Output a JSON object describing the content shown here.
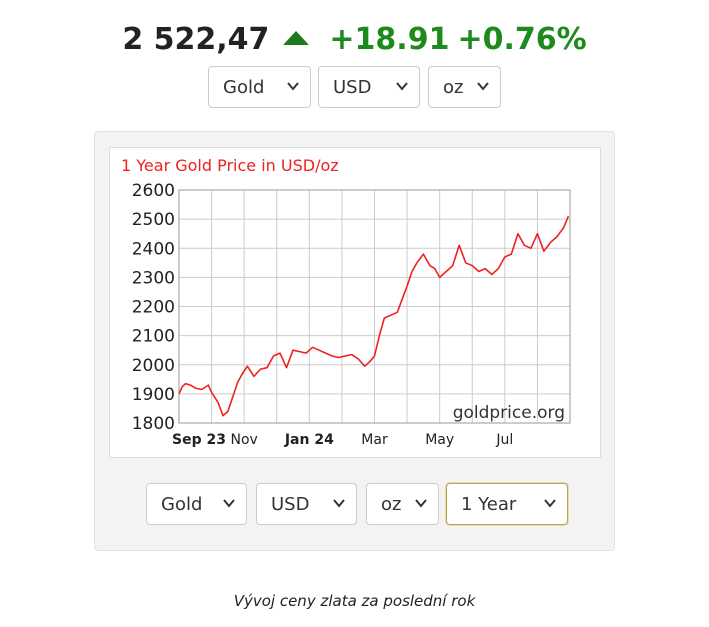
{
  "header": {
    "price": "2 522,47",
    "change": "+18.91",
    "change_pct": "+0.76%",
    "up_color": "#1e8a1e"
  },
  "top_selects": {
    "metal": "Gold",
    "currency": "USD",
    "unit": "oz"
  },
  "bottom_selects": {
    "metal": "Gold",
    "currency": "USD",
    "unit": "oz",
    "period": "1 Year"
  },
  "caption": "Vývoj ceny zlata za poslední rok",
  "chart_data": {
    "type": "line",
    "title": "1 Year Gold Price in USD/oz",
    "watermark": "goldprice.org",
    "ylim": [
      1800,
      2600
    ],
    "yticks": [
      1800,
      1900,
      2000,
      2100,
      2200,
      2300,
      2400,
      2500,
      2600
    ],
    "xlim": [
      0,
      12
    ],
    "xticks": [
      {
        "pos": 0,
        "label": "Sep 23",
        "bold": true
      },
      {
        "pos": 2,
        "label": "Nov",
        "bold": false
      },
      {
        "pos": 4,
        "label": "Jan 24",
        "bold": true
      },
      {
        "pos": 6,
        "label": "Mar",
        "bold": false
      },
      {
        "pos": 8,
        "label": "May",
        "bold": false
      },
      {
        "pos": 10,
        "label": "Jul",
        "bold": false
      }
    ],
    "grid": true,
    "line_color": "#ee2222",
    "series": [
      {
        "x": [
          0,
          0.1,
          0.2,
          0.35,
          0.5,
          0.7,
          0.9,
          1.0,
          1.2,
          1.35,
          1.5,
          1.65,
          1.8,
          1.95,
          2.1,
          2.3,
          2.5,
          2.7,
          2.9,
          3.1,
          3.3,
          3.5,
          3.7,
          3.9,
          4.1,
          4.3,
          4.5,
          4.7,
          4.9,
          5.1,
          5.3,
          5.5,
          5.7,
          5.85,
          6.0,
          6.15,
          6.3,
          6.5,
          6.7,
          6.9,
          7.0,
          7.15,
          7.3,
          7.5,
          7.7,
          7.85,
          8.0,
          8.2,
          8.4,
          8.6,
          8.8,
          9.0,
          9.2,
          9.4,
          9.6,
          9.8,
          10.0,
          10.2,
          10.4,
          10.6,
          10.8,
          11.0,
          11.2,
          11.4,
          11.6,
          11.8,
          11.95
        ],
        "y": [
          1900,
          1925,
          1935,
          1930,
          1920,
          1915,
          1930,
          1905,
          1870,
          1825,
          1840,
          1890,
          1940,
          1970,
          1995,
          1960,
          1985,
          1990,
          2030,
          2040,
          1990,
          2050,
          2045,
          2040,
          2060,
          2050,
          2040,
          2030,
          2025,
          2030,
          2035,
          2020,
          1995,
          2010,
          2030,
          2100,
          2160,
          2170,
          2180,
          2240,
          2270,
          2320,
          2350,
          2380,
          2340,
          2330,
          2300,
          2320,
          2340,
          2410,
          2350,
          2340,
          2320,
          2330,
          2310,
          2330,
          2370,
          2380,
          2450,
          2410,
          2400,
          2450,
          2390,
          2420,
          2440,
          2470,
          2510
        ]
      }
    ]
  }
}
